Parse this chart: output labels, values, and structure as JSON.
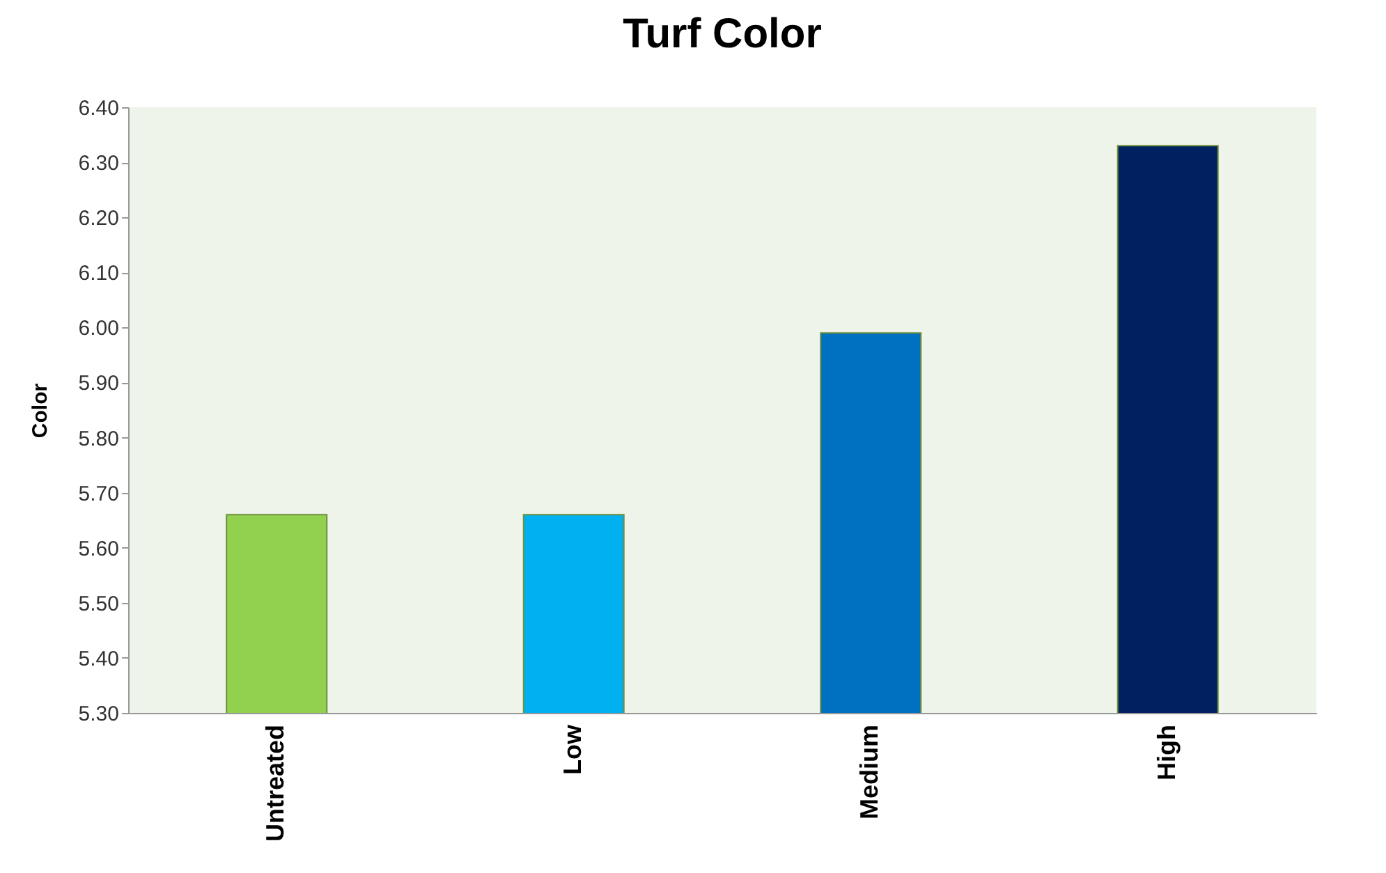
{
  "chart_data": {
    "type": "bar",
    "title": "Turf Color",
    "ylabel": "Color",
    "categories": [
      "Untreated",
      "Low",
      "Medium",
      "High"
    ],
    "values": [
      5.66,
      5.66,
      5.99,
      6.33
    ],
    "colors": [
      "#92d050",
      "#00b0f0",
      "#0070c0",
      "#002060"
    ],
    "ylim": [
      5.3,
      6.4
    ],
    "yticks": [
      {
        "value": 5.3,
        "label": "5.30"
      },
      {
        "value": 5.4,
        "label": "5.40"
      },
      {
        "value": 5.5,
        "label": "5.50"
      },
      {
        "value": 5.6,
        "label": "5.60"
      },
      {
        "value": 5.7,
        "label": "5.70"
      },
      {
        "value": 5.8,
        "label": "5.80"
      },
      {
        "value": 5.9,
        "label": "5.90"
      },
      {
        "value": 6.0,
        "label": "6.00"
      },
      {
        "value": 6.1,
        "label": "6.10"
      },
      {
        "value": 6.2,
        "label": "6.20"
      },
      {
        "value": 6.3,
        "label": "6.30"
      },
      {
        "value": 6.4,
        "label": "6.40"
      }
    ],
    "grid": false,
    "legend": false
  }
}
